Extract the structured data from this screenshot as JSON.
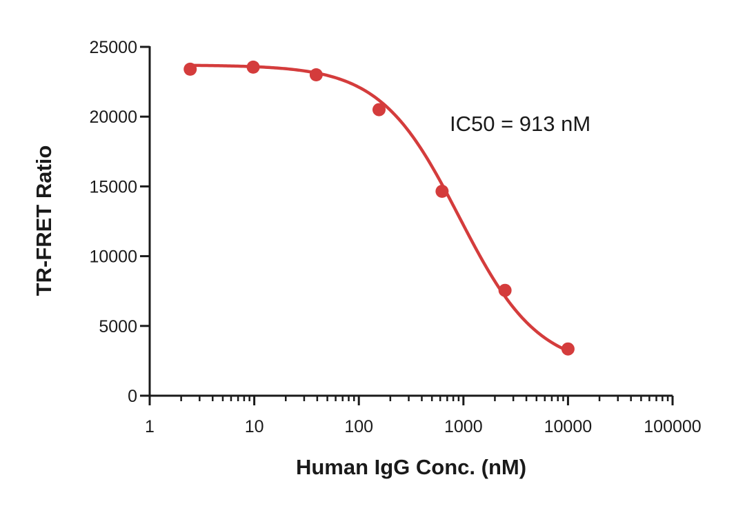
{
  "chart_data": {
    "type": "scatter",
    "title": "",
    "xlabel": "Human IgG Conc. (nM)",
    "ylabel": "TR-FRET Ratio",
    "x_scale": "log",
    "xlim": [
      1,
      100000
    ],
    "ylim": [
      0,
      25000
    ],
    "x_ticks": [
      1,
      10,
      100,
      1000,
      10000,
      100000
    ],
    "x_tick_labels": [
      "1",
      "10",
      "100",
      "1000",
      "10000",
      "100000"
    ],
    "y_ticks": [
      0,
      5000,
      10000,
      15000,
      20000,
      25000
    ],
    "y_tick_labels": [
      "0",
      "5000",
      "10000",
      "15000",
      "20000",
      "25000"
    ],
    "series": [
      {
        "name": "Human IgG",
        "x": [
          2.44,
          9.77,
          39.1,
          156,
          625,
          2500,
          10000
        ],
        "y": [
          23400,
          23550,
          23000,
          20500,
          14650,
          7550,
          3350
        ],
        "fit": {
          "model": "four-parameter logistic",
          "top": 23700,
          "bottom": 1900,
          "ic50": 913,
          "hill_slope": 1.15
        }
      }
    ],
    "annotations": [
      {
        "text": "IC50 = 913 nM"
      }
    ],
    "grid": false,
    "legend": "none",
    "series_color": "#d43c3c",
    "axis_color": "#1a1a1a"
  }
}
